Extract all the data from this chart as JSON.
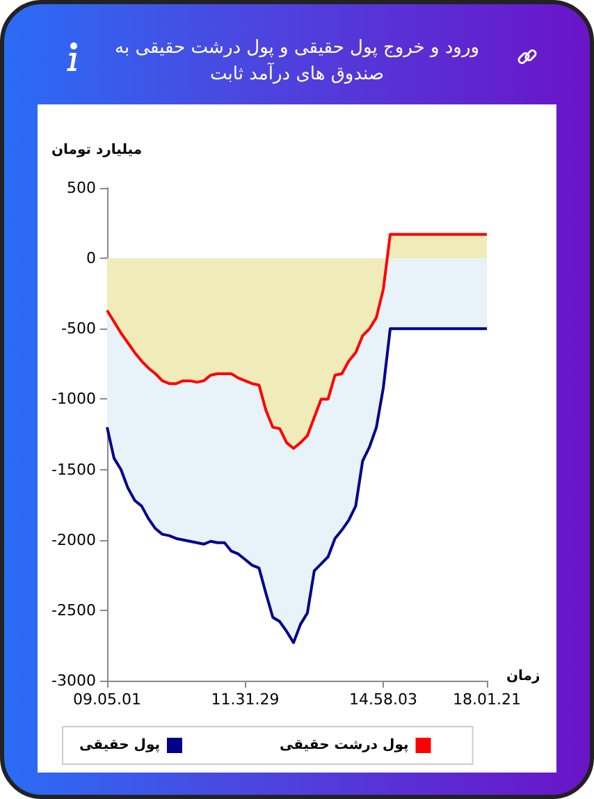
{
  "chart_data": {
    "type": "area",
    "title": "ورود و خروج پول حقیقی و پول درشت حقیقی به صندوق های درآمد ثابت",
    "xlabel": "زمان",
    "ylabel": "میلیارد تومان",
    "categories": [
      "09.05.01",
      null,
      null,
      null,
      null,
      null,
      null,
      null,
      null,
      null,
      null,
      null,
      null,
      null,
      null,
      null,
      null,
      null,
      null,
      null,
      "11.31.29",
      null,
      null,
      null,
      null,
      null,
      null,
      null,
      null,
      null,
      null,
      null,
      null,
      null,
      null,
      null,
      null,
      null,
      null,
      null,
      "14.58.03",
      null,
      null,
      null,
      null,
      null,
      null,
      null,
      null,
      null,
      null,
      null,
      null,
      null,
      null,
      "18.01.21"
    ],
    "series": [
      {
        "name": "پول حقیقی",
        "color": "#00008b",
        "values": [
          -1200,
          -1420,
          -1500,
          -1630,
          -1720,
          -1760,
          -1850,
          -1920,
          -1960,
          -1970,
          -1990,
          -2000,
          -2010,
          -2020,
          -2030,
          -2010,
          -2020,
          -2020,
          -2080,
          -2100,
          -2140,
          -2180,
          -2200,
          -2380,
          -2550,
          -2580,
          -2650,
          -2730,
          -2600,
          -2520,
          -2220,
          -2170,
          -2120,
          -1990,
          -1930,
          -1860,
          -1760,
          -1440,
          -1340,
          -1200,
          -920,
          -500,
          -500,
          -500,
          -500,
          -500,
          -500,
          -500,
          -500,
          -500,
          -500,
          -500,
          -500,
          -500,
          -500,
          -500
        ]
      },
      {
        "name": "پول درشت حقیقی",
        "color": "#ff0000",
        "values": [
          -370,
          -450,
          -530,
          -600,
          -670,
          -730,
          -780,
          -820,
          -870,
          -890,
          -890,
          -870,
          -870,
          -880,
          -870,
          -830,
          -820,
          -820,
          -820,
          -850,
          -870,
          -890,
          -900,
          -1080,
          -1200,
          -1210,
          -1310,
          -1350,
          -1310,
          -1260,
          -1130,
          -1000,
          -1000,
          -830,
          -820,
          -730,
          -670,
          -550,
          -500,
          -420,
          -220,
          170,
          170,
          170,
          170,
          170,
          170,
          170,
          170,
          170,
          170,
          170,
          170,
          170,
          170,
          170
        ]
      }
    ],
    "ylim": [
      -3000,
      500
    ],
    "yticks": [
      -3000,
      -2500,
      -2000,
      -1500,
      -1000,
      -500,
      0,
      500
    ],
    "grid": false,
    "legend": "bottom",
    "marker": "none",
    "line_style": "solid"
  }
}
